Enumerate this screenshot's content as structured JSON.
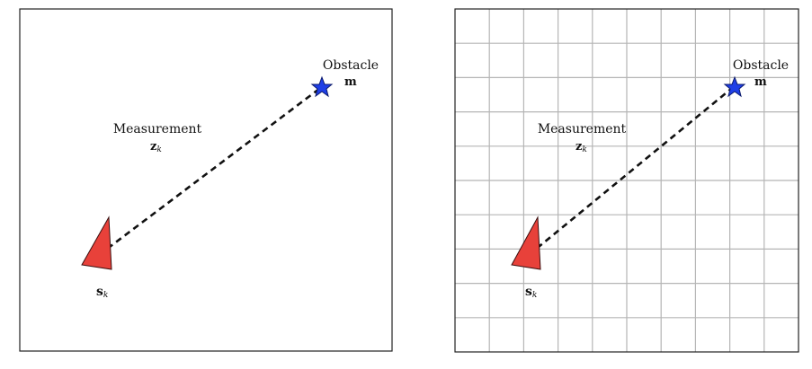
{
  "panels": [
    {
      "id": "left",
      "grid": false,
      "labels": {
        "obstacle": "Obstacle",
        "obstacle_symbol": "m",
        "measurement": "Measurement",
        "measurement_symbol": "z",
        "measurement_subscript": "k",
        "sensor_symbol": "s",
        "sensor_subscript": "k"
      }
    },
    {
      "id": "right",
      "grid": true,
      "labels": {
        "obstacle": "Obstacle",
        "obstacle_symbol": "m",
        "measurement": "Measurement",
        "measurement_symbol": "z",
        "measurement_subscript": "k",
        "sensor_symbol": "s",
        "sensor_subscript": "k"
      }
    }
  ],
  "colors": {
    "frame": "#222222",
    "grid": "#b5b5b5",
    "sensor_fill": "#e8413a",
    "sensor_stroke": "#3a0f0f",
    "obstacle_fill": "#1f3fe6",
    "obstacle_stroke": "#0b1a6e",
    "measurement_line": "#111111"
  },
  "icons": {
    "sensor": "red-triangle-sensor-icon",
    "obstacle": "blue-star-obstacle-icon"
  }
}
